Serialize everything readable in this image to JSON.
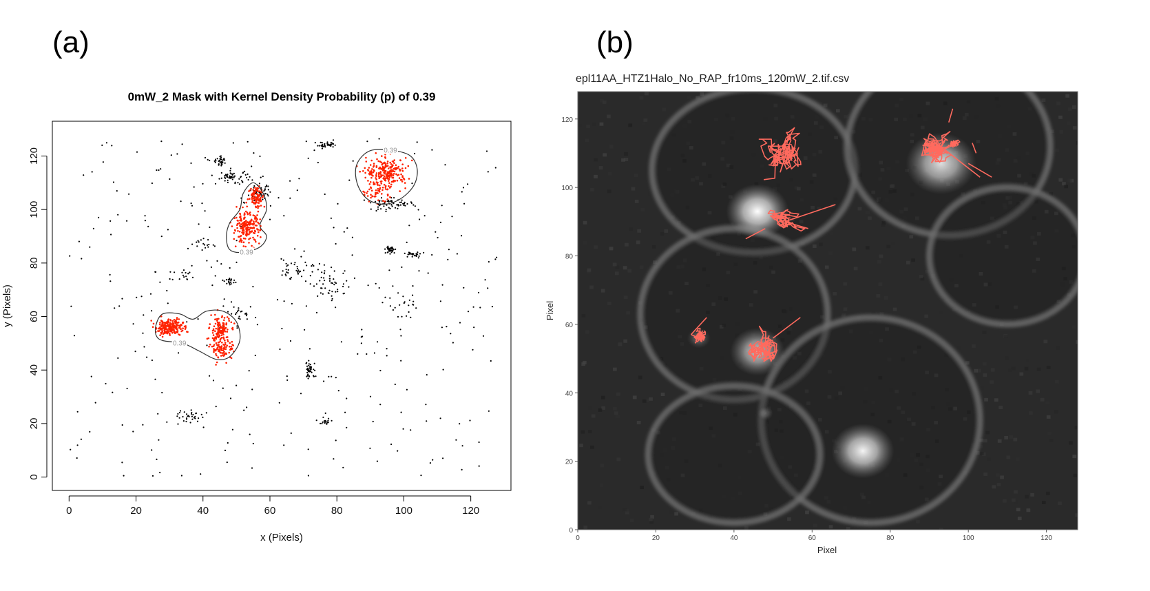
{
  "panels": {
    "a_label": "(a)",
    "b_label": "(b)"
  },
  "chart_data": [
    {
      "type": "scatter",
      "title": "0mW_2 Mask with Kernel Density Probability (p) of 0.39",
      "xlabel": "x (Pixels)",
      "ylabel": "y (Pixels)",
      "xlim": [
        -5,
        132
      ],
      "ylim": [
        -5,
        133
      ],
      "xticks": [
        0,
        20,
        40,
        60,
        80,
        100,
        120
      ],
      "yticks": [
        0,
        20,
        40,
        60,
        80,
        100,
        120
      ],
      "grid": false,
      "contour_level": "0.39",
      "colors": {
        "outside_mask": "#000000",
        "inside_mask": "#ff2200",
        "contour": "#333333",
        "contour_label": "#9a9a9a"
      },
      "contours": [
        {
          "name": "upper-right",
          "label_at": [
            96,
            122
          ],
          "points": [
            [
              90,
              122
            ],
            [
              97,
              122
            ],
            [
              102,
              120
            ],
            [
              104,
              115
            ],
            [
              103,
              109
            ],
            [
              99,
              104
            ],
            [
              94,
              102
            ],
            [
              89,
              104
            ],
            [
              86,
              110
            ],
            [
              86,
              117
            ]
          ]
        },
        {
          "name": "middle",
          "label_at": [
            53,
            84
          ],
          "points": [
            [
              55,
              110
            ],
            [
              58,
              106
            ],
            [
              59,
              100
            ],
            [
              57,
              94
            ],
            [
              59,
              90
            ],
            [
              57,
              86
            ],
            [
              52,
              84
            ],
            [
              48,
              85
            ],
            [
              47,
              90
            ],
            [
              48,
              95
            ],
            [
              51,
              100
            ],
            [
              52,
              106
            ]
          ]
        },
        {
          "name": "lower-left",
          "label_at": [
            33,
            50
          ],
          "points": [
            [
              26,
              57
            ],
            [
              28,
              61
            ],
            [
              33,
              61
            ],
            [
              37,
              59
            ],
            [
              41,
              62
            ],
            [
              46,
              62
            ],
            [
              50,
              58
            ],
            [
              51,
              51
            ],
            [
              48,
              45
            ],
            [
              44,
              44
            ],
            [
              39,
              47
            ],
            [
              34,
              50
            ],
            [
              28,
              51
            ],
            [
              26,
              53
            ]
          ]
        }
      ],
      "clusters": [
        {
          "color": "red",
          "center": [
            30,
            56
          ],
          "spread": [
            2.0,
            1.5
          ],
          "count": 220
        },
        {
          "color": "red",
          "center": [
            45,
            55
          ],
          "spread": [
            1.5,
            2.5
          ],
          "count": 130
        },
        {
          "color": "red",
          "center": [
            46,
            48
          ],
          "spread": [
            1.8,
            2.0
          ],
          "count": 90
        },
        {
          "color": "red",
          "center": [
            53,
            93
          ],
          "spread": [
            2.0,
            2.8
          ],
          "count": 200
        },
        {
          "color": "red",
          "center": [
            56,
            105
          ],
          "spread": [
            1.2,
            2.2
          ],
          "count": 90
        },
        {
          "color": "red",
          "center": [
            95,
            114
          ],
          "spread": [
            3.0,
            2.5
          ],
          "count": 220
        },
        {
          "color": "red",
          "center": [
            92,
            107
          ],
          "spread": [
            2.5,
            2.0
          ],
          "count": 60
        },
        {
          "color": "black",
          "center": [
            57,
            106
          ],
          "spread": [
            1.5,
            1.5
          ],
          "count": 50
        },
        {
          "color": "black",
          "center": [
            49,
            112
          ],
          "spread": [
            2.5,
            1.2
          ],
          "count": 55
        },
        {
          "color": "black",
          "center": [
            45,
            118
          ],
          "spread": [
            1.2,
            0.8
          ],
          "count": 30
        },
        {
          "color": "black",
          "center": [
            77,
            124
          ],
          "spread": [
            1.6,
            0.6
          ],
          "count": 35
        },
        {
          "color": "black",
          "center": [
            96,
            85
          ],
          "spread": [
            0.7,
            0.7
          ],
          "count": 40
        },
        {
          "color": "black",
          "center": [
            103,
            83
          ],
          "spread": [
            1.5,
            0.6
          ],
          "count": 30
        },
        {
          "color": "black",
          "center": [
            96,
            102
          ],
          "spread": [
            3.5,
            1.0
          ],
          "count": 60
        },
        {
          "color": "black",
          "center": [
            72,
            40
          ],
          "spread": [
            0.9,
            1.6
          ],
          "count": 40
        },
        {
          "color": "black",
          "center": [
            36,
            23
          ],
          "spread": [
            1.8,
            1.2
          ],
          "count": 30
        },
        {
          "color": "black",
          "center": [
            48,
            73
          ],
          "spread": [
            0.8,
            0.8
          ],
          "count": 18
        },
        {
          "color": "black",
          "center": [
            77,
            21
          ],
          "spread": [
            1.0,
            0.8
          ],
          "count": 18
        },
        {
          "color": "black",
          "center": [
            69,
            78
          ],
          "spread": [
            3.0,
            2.5
          ],
          "count": 40
        },
        {
          "color": "black",
          "center": [
            78,
            72
          ],
          "spread": [
            3.0,
            3.0
          ],
          "count": 45
        },
        {
          "color": "black",
          "center": [
            52,
            60
          ],
          "spread": [
            1.5,
            1.5
          ],
          "count": 20
        },
        {
          "color": "black",
          "center": [
            100,
            64
          ],
          "spread": [
            3.0,
            3.0
          ],
          "count": 25
        },
        {
          "color": "black",
          "center": [
            34,
            75
          ],
          "spread": [
            2.0,
            1.0
          ],
          "count": 16
        },
        {
          "color": "black",
          "center": [
            40,
            87
          ],
          "spread": [
            3.0,
            1.5
          ],
          "count": 18
        }
      ],
      "background": {
        "color": "black",
        "count": 330,
        "xrange": [
          0,
          128
        ],
        "yrange": [
          0,
          127
        ]
      }
    },
    {
      "type": "heatmap",
      "title": "epl11AA_HTZ1Halo_No_RAP_fr10ms_120mW_2.tif.csv",
      "xlabel": "Pixel",
      "ylabel": "Pixel",
      "xlim": [
        0,
        128
      ],
      "ylim": [
        0,
        128
      ],
      "xticks": [
        0,
        20,
        40,
        60,
        80,
        100,
        120
      ],
      "yticks": [
        0,
        20,
        40,
        60,
        80,
        100,
        120
      ],
      "grid": false,
      "colors": {
        "background": "#2a2a2a",
        "track": "#ff6a5e"
      },
      "cells": [
        {
          "center": [
            45,
            105
          ],
          "radii": [
            26,
            24
          ]
        },
        {
          "center": [
            95,
            112
          ],
          "radii": [
            26,
            26
          ]
        },
        {
          "center": [
            40,
            63
          ],
          "radii": [
            24,
            25
          ]
        },
        {
          "center": [
            110,
            80
          ],
          "radii": [
            20,
            20
          ]
        },
        {
          "center": [
            75,
            32
          ],
          "radii": [
            28,
            30
          ]
        },
        {
          "center": [
            40,
            22
          ],
          "radii": [
            22,
            20
          ]
        }
      ],
      "bright_spots": [
        {
          "center": [
            46,
            93
          ],
          "radius": 8,
          "intensity": 1.0
        },
        {
          "center": [
            93,
            107
          ],
          "radius": 9,
          "intensity": 0.85
        },
        {
          "center": [
            46,
            52
          ],
          "radius": 7,
          "intensity": 0.75
        },
        {
          "center": [
            73,
            23
          ],
          "radius": 8,
          "intensity": 0.95
        },
        {
          "center": [
            31,
            56
          ],
          "radius": 3,
          "intensity": 0.3
        },
        {
          "center": [
            48,
            34
          ],
          "radius": 2,
          "intensity": 0.25
        }
      ],
      "tracks": [
        {
          "center": [
            52,
            109
          ],
          "spread": [
            4.5,
            6.5
          ],
          "steps": 160
        },
        {
          "center": [
            52,
            91
          ],
          "spread": [
            4.0,
            2.5
          ],
          "steps": 110
        },
        {
          "center": [
            31,
            56
          ],
          "spread": [
            1.5,
            1.8
          ],
          "steps": 110
        },
        {
          "center": [
            47,
            53
          ],
          "spread": [
            3.0,
            5.0
          ],
          "steps": 130
        },
        {
          "center": [
            92,
            112
          ],
          "spread": [
            4.0,
            4.0
          ],
          "steps": 160
        },
        {
          "center": [
            97,
            113
          ],
          "spread": [
            2.0,
            1.5
          ],
          "steps": 60
        }
      ],
      "segments": [
        [
          [
            53,
            90
          ],
          [
            66,
            95
          ]
        ],
        [
          [
            53,
            90
          ],
          [
            59,
            88
          ]
        ],
        [
          [
            48,
            88
          ],
          [
            43,
            85
          ]
        ],
        [
          [
            29,
            57
          ],
          [
            33,
            62
          ]
        ],
        [
          [
            94,
            111
          ],
          [
            103,
            103
          ]
        ],
        [
          [
            100,
            107
          ],
          [
            106,
            103
          ]
        ],
        [
          [
            95,
            119
          ],
          [
            96,
            123
          ]
        ],
        [
          [
            101,
            113
          ],
          [
            102,
            110
          ]
        ],
        [
          [
            50,
            56
          ],
          [
            57,
            62
          ]
        ]
      ]
    }
  ]
}
